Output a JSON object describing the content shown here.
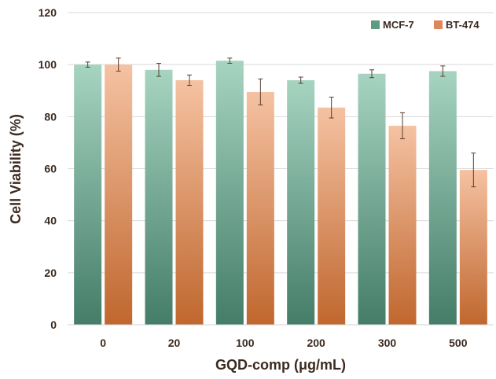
{
  "chart_data": {
    "type": "bar",
    "title": "",
    "xlabel": "GQD-comp (μg/mL)",
    "ylabel": "Cell Viability (%)",
    "ylim": [
      0,
      120
    ],
    "yticks": [
      0,
      20,
      40,
      60,
      80,
      100,
      120
    ],
    "categories": [
      "0",
      "20",
      "100",
      "200",
      "300",
      "500"
    ],
    "series": [
      {
        "name": "MCF-7",
        "values": [
          100,
          98,
          101.5,
          94,
          96.5,
          97.5
        ],
        "errors": [
          1,
          2.5,
          1,
          1.2,
          1.5,
          2
        ],
        "color_top": "#a6d4c1",
        "color_bottom": "#447d68"
      },
      {
        "name": "BT-474",
        "values": [
          100,
          94,
          89.5,
          83.5,
          76.5,
          59.5
        ],
        "errors": [
          2.5,
          2,
          5,
          4,
          5,
          6.5
        ],
        "color_top": "#f5c2a2",
        "color_bottom": "#c0672e"
      }
    ],
    "grid": true,
    "gridline_color": "#d9d9d9",
    "legend_position": "top-right",
    "error_bar_color": "#5a3d2e"
  }
}
